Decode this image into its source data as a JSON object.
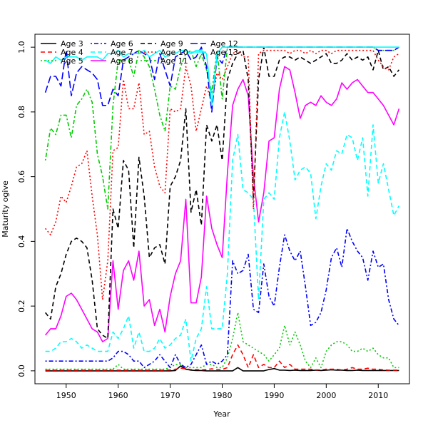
{
  "chart_data": {
    "type": "line",
    "title": "",
    "xlabel": "Year",
    "ylabel": "Maturity ogive",
    "xlim": [
      1944,
      2016
    ],
    "ylim": [
      -0.04,
      1.04
    ],
    "x_ticks": [
      1950,
      1960,
      1970,
      1980,
      1990,
      2000,
      2010
    ],
    "y_ticks": [
      0.0,
      0.2,
      0.4,
      0.6,
      0.8,
      1.0
    ],
    "y_tick_labels": [
      "0.0",
      "0.2",
      "0.4",
      "0.6",
      "0.8",
      "1.0"
    ],
    "grid": false,
    "legend_position": "top-left",
    "x": [
      1946,
      1947,
      1948,
      1949,
      1950,
      1951,
      1952,
      1953,
      1954,
      1955,
      1956,
      1957,
      1958,
      1959,
      1960,
      1961,
      1962,
      1963,
      1964,
      1965,
      1966,
      1967,
      1968,
      1969,
      1970,
      1971,
      1972,
      1973,
      1974,
      1975,
      1976,
      1977,
      1978,
      1979,
      1980,
      1981,
      1982,
      1983,
      1984,
      1985,
      1986,
      1987,
      1988,
      1989,
      1990,
      1991,
      1992,
      1993,
      1994,
      1995,
      1996,
      1997,
      1998,
      1999,
      2000,
      2001,
      2002,
      2003,
      2004,
      2005,
      2006,
      2007,
      2008,
      2009,
      2010,
      2011,
      2012,
      2013,
      2014
    ],
    "series": [
      {
        "name": "Age 3",
        "color": "#000000",
        "dash": "solid",
        "values": [
          0,
          0,
          0,
          0,
          0,
          0,
          0,
          0,
          0,
          0,
          0,
          0,
          0,
          0,
          0,
          0,
          0,
          0,
          0,
          0,
          0,
          0,
          0,
          0,
          0,
          0.001,
          0.015,
          0.005,
          0.002,
          0.001,
          0.001,
          0,
          0,
          0,
          0,
          0,
          0,
          0.01,
          0,
          0,
          0,
          0,
          0,
          0.004,
          0.007,
          0.002,
          0.002,
          0.001,
          0.002,
          0.001,
          0.001,
          0.001,
          0.002,
          0.001,
          0.002,
          0.003,
          0.002,
          0.002,
          0.001,
          0.001,
          0.002,
          0.001,
          0.001,
          0.001,
          0.001,
          0.001,
          0.001,
          0.001,
          0.001
        ]
      },
      {
        "name": "Age 4",
        "color": "#ff0000",
        "dash": "dashed",
        "values": [
          0.002,
          0.002,
          0.002,
          0.002,
          0.002,
          0.002,
          0.002,
          0.002,
          0.002,
          0.002,
          0.002,
          0.002,
          0.002,
          0.002,
          0.002,
          0.002,
          0.002,
          0.002,
          0.002,
          0.002,
          0.002,
          0.002,
          0.002,
          0.002,
          0.003,
          0.005,
          0.008,
          0.006,
          0.004,
          0.004,
          0.003,
          0.004,
          0.006,
          0.004,
          0.004,
          0.01,
          0.05,
          0.08,
          0.05,
          0.01,
          0.05,
          0.01,
          0.02,
          0.01,
          0.01,
          0.03,
          0.01,
          0.02,
          0.005,
          0.005,
          0.005,
          0.005,
          0.003,
          0.003,
          0.005,
          0.005,
          0.005,
          0.003,
          0.005,
          0.01,
          0.005,
          0.005,
          0.008,
          0.005,
          0.005,
          0.003,
          0.002,
          0.002,
          0.002
        ]
      },
      {
        "name": "Age 5",
        "color": "#00cc00",
        "dash": "dotted",
        "values": [
          0.005,
          0.005,
          0.005,
          0.005,
          0.005,
          0.005,
          0.005,
          0.005,
          0.005,
          0.005,
          0.005,
          0.005,
          0.005,
          0.005,
          0.02,
          0.005,
          0.005,
          0.005,
          0.005,
          0.005,
          0.005,
          0.005,
          0.005,
          0.005,
          0.01,
          0.02,
          0.02,
          0.01,
          0.01,
          0.01,
          0.01,
          0.02,
          0.02,
          0.01,
          0.01,
          0.04,
          0.1,
          0.18,
          0.09,
          0.08,
          0.07,
          0.06,
          0.05,
          0.03,
          0.05,
          0.07,
          0.14,
          0.08,
          0.12,
          0.08,
          0.03,
          0.01,
          0.04,
          0.01,
          0.06,
          0.08,
          0.09,
          0.09,
          0.08,
          0.06,
          0.06,
          0.07,
          0.06,
          0.07,
          0.05,
          0.04,
          0.04,
          0.01,
          0.01
        ]
      },
      {
        "name": "Age 6",
        "color": "#0000ff",
        "dash": "dotdash",
        "values": [
          0.03,
          0.03,
          0.03,
          0.03,
          0.03,
          0.03,
          0.03,
          0.03,
          0.03,
          0.03,
          0.03,
          0.03,
          0.03,
          0.04,
          0.06,
          0.06,
          0.05,
          0.03,
          0.03,
          0.01,
          0.02,
          0.03,
          0.05,
          0.03,
          0.01,
          0.05,
          0.02,
          0.01,
          0.02,
          0.05,
          0.08,
          0.02,
          0.03,
          0.02,
          0.03,
          0.05,
          0.34,
          0.3,
          0.31,
          0.36,
          0.19,
          0.18,
          0.33,
          0.23,
          0.2,
          0.32,
          0.42,
          0.37,
          0.34,
          0.37,
          0.26,
          0.14,
          0.15,
          0.18,
          0.25,
          0.35,
          0.38,
          0.32,
          0.44,
          0.4,
          0.37,
          0.35,
          0.28,
          0.37,
          0.32,
          0.33,
          0.22,
          0.16,
          0.14
        ]
      },
      {
        "name": "Age 7",
        "color": "#00ffff",
        "dash": "dashed",
        "values": [
          0.06,
          0.06,
          0.07,
          0.09,
          0.09,
          0.1,
          0.09,
          0.07,
          0.08,
          0.07,
          0.06,
          0.06,
          0.06,
          0.12,
          0.1,
          0.13,
          0.17,
          0.07,
          0.12,
          0.06,
          0.06,
          0.07,
          0.1,
          0.07,
          0.08,
          0.1,
          0.11,
          0.16,
          0.03,
          0.1,
          0.13,
          0.26,
          0.13,
          0.13,
          0.13,
          0.3,
          0.65,
          0.73,
          0.56,
          0.55,
          0.53,
          0.22,
          0.53,
          0.55,
          0.53,
          0.72,
          0.8,
          0.71,
          0.59,
          0.62,
          0.63,
          0.61,
          0.47,
          0.57,
          0.64,
          0.62,
          0.68,
          0.67,
          0.73,
          0.72,
          0.65,
          0.72,
          0.54,
          0.76,
          0.58,
          0.64,
          0.56,
          0.48,
          0.51
        ]
      },
      {
        "name": "Age 8",
        "color": "#ff00ff",
        "dash": "solid",
        "values": [
          0.11,
          0.13,
          0.13,
          0.17,
          0.23,
          0.24,
          0.22,
          0.19,
          0.16,
          0.13,
          0.12,
          0.09,
          0.1,
          0.34,
          0.19,
          0.31,
          0.34,
          0.28,
          0.37,
          0.2,
          0.22,
          0.14,
          0.19,
          0.12,
          0.23,
          0.3,
          0.34,
          0.53,
          0.21,
          0.21,
          0.29,
          0.54,
          0.44,
          0.39,
          0.35,
          0.61,
          0.82,
          0.87,
          0.9,
          0.85,
          0.6,
          0.46,
          0.55,
          0.71,
          0.72,
          0.87,
          0.94,
          0.93,
          0.86,
          0.78,
          0.82,
          0.83,
          0.82,
          0.85,
          0.83,
          0.82,
          0.84,
          0.89,
          0.87,
          0.89,
          0.9,
          0.88,
          0.86,
          0.86,
          0.84,
          0.82,
          0.79,
          0.76,
          0.81
        ]
      },
      {
        "name": "Age 9",
        "color": "#000000",
        "dash": "dashed",
        "values": [
          0.18,
          0.16,
          0.26,
          0.3,
          0.36,
          0.4,
          0.41,
          0.4,
          0.38,
          0.28,
          0.13,
          0.11,
          0.1,
          0.5,
          0.44,
          0.65,
          0.62,
          0.38,
          0.66,
          0.54,
          0.35,
          0.38,
          0.39,
          0.33,
          0.57,
          0.6,
          0.65,
          0.81,
          0.49,
          0.56,
          0.45,
          0.76,
          0.71,
          0.76,
          0.65,
          0.9,
          0.95,
          0.98,
          0.99,
          0.9,
          0.53,
          0.9,
          1.0,
          0.91,
          0.91,
          0.96,
          0.97,
          0.97,
          0.96,
          0.97,
          0.96,
          0.95,
          0.96,
          0.97,
          0.98,
          0.95,
          0.95,
          0.96,
          0.98,
          0.96,
          0.97,
          0.96,
          0.97,
          0.93,
          0.99,
          0.93,
          0.94,
          0.91,
          0.93
        ]
      },
      {
        "name": "Age 10",
        "color": "#ff0000",
        "dash": "dotted",
        "values": [
          0.44,
          0.42,
          0.46,
          0.54,
          0.52,
          0.57,
          0.63,
          0.64,
          0.68,
          0.54,
          0.42,
          0.22,
          0.34,
          0.68,
          0.69,
          0.9,
          0.81,
          0.81,
          0.89,
          0.73,
          0.74,
          0.63,
          0.57,
          0.55,
          0.81,
          0.8,
          0.81,
          0.94,
          0.88,
          0.74,
          0.81,
          0.88,
          0.83,
          0.92,
          0.9,
          0.94,
          0.98,
          0.99,
          0.97,
          0.97,
          0.5,
          0.98,
          0.99,
          0.99,
          0.99,
          0.99,
          0.99,
          0.98,
          0.99,
          0.99,
          0.98,
          0.99,
          0.98,
          0.99,
          0.99,
          0.98,
          0.99,
          0.99,
          0.99,
          0.99,
          0.99,
          0.99,
          0.99,
          0.99,
          0.96,
          0.94,
          0.93,
          0.97,
          0.98
        ]
      },
      {
        "name": "Age 11",
        "color": "#00cc00",
        "dash": "dotdash",
        "values": [
          0.65,
          0.75,
          0.73,
          0.79,
          0.79,
          0.72,
          0.82,
          0.84,
          0.87,
          0.83,
          0.67,
          0.6,
          0.5,
          0.82,
          0.96,
          0.96,
          0.96,
          0.91,
          0.99,
          0.97,
          0.94,
          0.87,
          0.79,
          0.74,
          0.88,
          0.87,
          0.94,
          0.98,
          0.99,
          0.94,
          0.98,
          0.93,
          0.86,
          0.99,
          0.84,
          1.0,
          1.0,
          1.0,
          1.0,
          1.0,
          1.0,
          1.0,
          1.0,
          1.0,
          1.0,
          1.0,
          1.0,
          1.0,
          1.0,
          1.0,
          1.0,
          1.0,
          1.0,
          1.0,
          1.0,
          1.0,
          1.0,
          1.0,
          1.0,
          1.0,
          1.0,
          1.0,
          1.0,
          1.0,
          0.99,
          0.99,
          0.99,
          0.99,
          1.0
        ]
      },
      {
        "name": "Age 12",
        "color": "#0000ff",
        "dash": "longdash",
        "values": [
          0.86,
          0.91,
          0.91,
          0.88,
          0.99,
          0.85,
          0.92,
          0.94,
          0.93,
          0.92,
          0.9,
          0.82,
          0.82,
          0.87,
          0.85,
          0.96,
          0.97,
          0.98,
          0.99,
          0.98,
          0.97,
          0.9,
          0.98,
          0.93,
          0.88,
          0.97,
          0.98,
          0.99,
          0.96,
          0.97,
          1.0,
          0.94,
          0.8,
          0.97,
          0.95,
          1.0,
          1.0,
          1.0,
          1.0,
          1.0,
          1.0,
          1.0,
          1.0,
          1.0,
          1.0,
          1.0,
          1.0,
          1.0,
          1.0,
          1.0,
          1.0,
          1.0,
          1.0,
          1.0,
          1.0,
          1.0,
          1.0,
          1.0,
          1.0,
          1.0,
          1.0,
          1.0,
          1.0,
          1.0,
          0.99,
          0.99,
          0.99,
          0.99,
          1.0
        ]
      },
      {
        "name": "Age 13",
        "color": "#00ffff",
        "dash": "solid",
        "values": [
          0.96,
          0.95,
          0.97,
          0.96,
          0.97,
          0.97,
          0.97,
          0.96,
          0.97,
          0.97,
          0.97,
          0.96,
          0.98,
          0.98,
          0.99,
          0.97,
          0.98,
          0.98,
          0.98,
          0.99,
          0.97,
          0.98,
          0.99,
          0.97,
          0.98,
          0.98,
          0.99,
          0.99,
          0.98,
          0.99,
          0.99,
          0.98,
          0.82,
          0.98,
          1.0,
          1.0,
          1.0,
          1.0,
          1.0,
          1.0,
          1.0,
          1.0,
          1.0,
          1.0,
          1.0,
          1.0,
          1.0,
          1.0,
          1.0,
          1.0,
          1.0,
          1.0,
          1.0,
          1.0,
          1.0,
          1.0,
          1.0,
          1.0,
          1.0,
          1.0,
          1.0,
          1.0,
          1.0,
          1.0,
          1.0,
          1.0,
          1.0,
          1.0,
          1.0
        ]
      }
    ]
  }
}
